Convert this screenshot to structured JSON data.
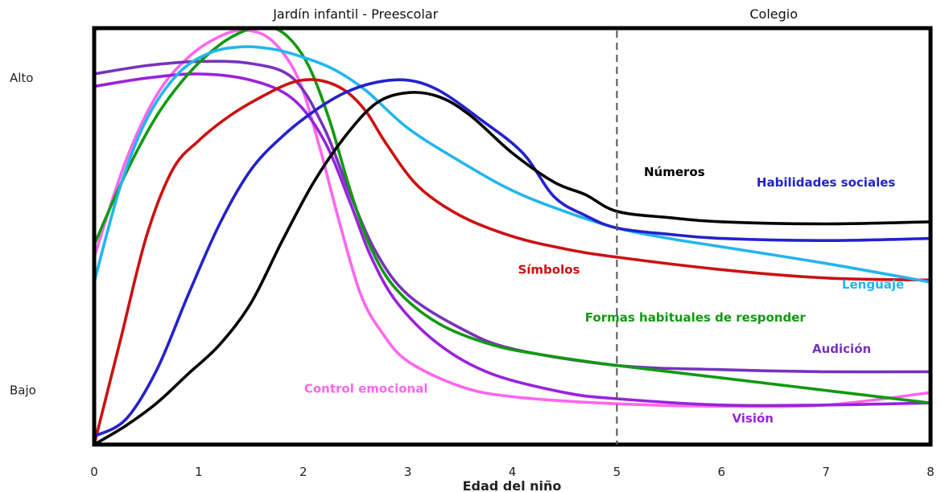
{
  "chart_data": {
    "type": "line",
    "xlabel": "Edad del niño",
    "ylabel": "",
    "xlim": [
      0,
      8
    ],
    "ylim": [
      0,
      10
    ],
    "x_ticks": [
      0,
      1,
      2,
      3,
      4,
      5,
      6,
      7,
      8
    ],
    "y_ticks": [
      {
        "label": "Bajo",
        "value": 1.3
      },
      {
        "label": "Alto",
        "value": 8.8
      }
    ],
    "regions": [
      {
        "label": "Jardín infantil - Preescolar",
        "from": 0,
        "to": 5
      },
      {
        "label": "Colegio",
        "from": 5,
        "to": 8
      }
    ],
    "divider_x": 5,
    "grid": false,
    "series": [
      {
        "name": "Control emocional",
        "color": "#ff66ee",
        "points": [
          [
            0,
            4.5
          ],
          [
            0.3,
            6.8
          ],
          [
            0.6,
            8.4
          ],
          [
            0.9,
            9.3
          ],
          [
            1.2,
            9.8
          ],
          [
            1.45,
            9.95
          ],
          [
            1.7,
            9.7
          ],
          [
            1.95,
            8.8
          ],
          [
            2.15,
            7.2
          ],
          [
            2.35,
            5.3
          ],
          [
            2.55,
            3.6
          ],
          [
            2.75,
            2.7
          ],
          [
            3,
            2.0
          ],
          [
            3.5,
            1.4
          ],
          [
            4,
            1.15
          ],
          [
            5,
            0.98
          ],
          [
            6,
            0.92
          ],
          [
            7,
            0.95
          ],
          [
            8,
            1.25
          ]
        ]
      },
      {
        "name": "Visión",
        "color": "#9922dd",
        "points": [
          [
            0,
            8.6
          ],
          [
            0.5,
            8.8
          ],
          [
            1,
            8.9
          ],
          [
            1.5,
            8.75
          ],
          [
            1.9,
            8.3
          ],
          [
            2.2,
            7.3
          ],
          [
            2.45,
            5.8
          ],
          [
            2.65,
            4.5
          ],
          [
            2.9,
            3.4
          ],
          [
            3.3,
            2.4
          ],
          [
            3.8,
            1.7
          ],
          [
            4.5,
            1.25
          ],
          [
            5,
            1.1
          ],
          [
            6,
            0.95
          ],
          [
            7,
            0.95
          ],
          [
            8,
            1.0
          ]
        ]
      },
      {
        "name": "Audición",
        "color": "#7733bb",
        "points": [
          [
            0,
            8.9
          ],
          [
            0.5,
            9.1
          ],
          [
            1,
            9.2
          ],
          [
            1.5,
            9.15
          ],
          [
            1.9,
            8.8
          ],
          [
            2.2,
            7.6
          ],
          [
            2.45,
            6.0
          ],
          [
            2.7,
            4.6
          ],
          [
            3,
            3.6
          ],
          [
            3.5,
            2.8
          ],
          [
            4,
            2.3
          ],
          [
            5,
            1.9
          ],
          [
            6,
            1.8
          ],
          [
            7,
            1.75
          ],
          [
            8,
            1.75
          ]
        ]
      },
      {
        "name": "Formas habituales de responder",
        "color": "#119911",
        "points": [
          [
            0,
            4.8
          ],
          [
            0.3,
            6.5
          ],
          [
            0.6,
            7.9
          ],
          [
            0.9,
            8.9
          ],
          [
            1.2,
            9.6
          ],
          [
            1.45,
            9.95
          ],
          [
            1.65,
            10.05
          ],
          [
            1.85,
            9.8
          ],
          [
            2.05,
            9.1
          ],
          [
            2.25,
            7.8
          ],
          [
            2.45,
            6.1
          ],
          [
            2.65,
            4.7
          ],
          [
            2.9,
            3.7
          ],
          [
            3.3,
            2.9
          ],
          [
            3.8,
            2.4
          ],
          [
            4.3,
            2.15
          ],
          [
            5,
            1.9
          ],
          [
            6,
            1.6
          ],
          [
            7,
            1.3
          ],
          [
            8,
            1.0
          ]
        ]
      },
      {
        "name": "Símbolos",
        "color": "#cc1111",
        "points": [
          [
            0,
            0
          ],
          [
            0.25,
            2.5
          ],
          [
            0.5,
            5.0
          ],
          [
            0.75,
            6.6
          ],
          [
            1,
            7.3
          ],
          [
            1.3,
            7.9
          ],
          [
            1.6,
            8.35
          ],
          [
            1.9,
            8.7
          ],
          [
            2.15,
            8.75
          ],
          [
            2.4,
            8.5
          ],
          [
            2.6,
            8.0
          ],
          [
            2.8,
            7.2
          ],
          [
            3.1,
            6.2
          ],
          [
            3.5,
            5.5
          ],
          [
            4,
            5.0
          ],
          [
            4.5,
            4.7
          ],
          [
            5,
            4.5
          ],
          [
            6,
            4.2
          ],
          [
            7,
            4.0
          ],
          [
            8,
            3.95
          ]
        ]
      },
      {
        "name": "Lenguaje",
        "color": "#22b5ee",
        "points": [
          [
            0,
            3.9
          ],
          [
            0.25,
            6.2
          ],
          [
            0.5,
            7.8
          ],
          [
            0.8,
            8.9
          ],
          [
            1.1,
            9.4
          ],
          [
            1.4,
            9.55
          ],
          [
            1.7,
            9.5
          ],
          [
            2,
            9.3
          ],
          [
            2.3,
            9.0
          ],
          [
            2.6,
            8.5
          ],
          [
            3,
            7.6
          ],
          [
            3.5,
            6.8
          ],
          [
            4,
            6.1
          ],
          [
            4.5,
            5.6
          ],
          [
            5,
            5.2
          ],
          [
            5.5,
            4.95
          ],
          [
            6,
            4.75
          ],
          [
            7,
            4.35
          ],
          [
            8,
            3.9
          ]
        ]
      },
      {
        "name": "Habilidades sociales",
        "color": "#2222cc",
        "points": [
          [
            0,
            0.2
          ],
          [
            0.3,
            0.6
          ],
          [
            0.6,
            1.8
          ],
          [
            0.9,
            3.6
          ],
          [
            1.2,
            5.3
          ],
          [
            1.5,
            6.6
          ],
          [
            1.8,
            7.4
          ],
          [
            2.1,
            8.0
          ],
          [
            2.4,
            8.45
          ],
          [
            2.7,
            8.7
          ],
          [
            3,
            8.75
          ],
          [
            3.3,
            8.5
          ],
          [
            3.7,
            7.8
          ],
          [
            4.1,
            7.0
          ],
          [
            4.4,
            5.95
          ],
          [
            4.7,
            5.5
          ],
          [
            5,
            5.2
          ],
          [
            5.5,
            5.05
          ],
          [
            6,
            4.95
          ],
          [
            7,
            4.9
          ],
          [
            8,
            4.95
          ]
        ]
      },
      {
        "name": "Números",
        "color": "#000000",
        "points": [
          [
            0,
            0
          ],
          [
            0.3,
            0.45
          ],
          [
            0.6,
            1.0
          ],
          [
            0.9,
            1.7
          ],
          [
            1.2,
            2.4
          ],
          [
            1.5,
            3.4
          ],
          [
            1.8,
            4.9
          ],
          [
            2.1,
            6.3
          ],
          [
            2.4,
            7.4
          ],
          [
            2.7,
            8.2
          ],
          [
            3,
            8.45
          ],
          [
            3.3,
            8.35
          ],
          [
            3.6,
            7.9
          ],
          [
            4,
            7.0
          ],
          [
            4.4,
            6.3
          ],
          [
            4.7,
            6.0
          ],
          [
            5,
            5.6
          ],
          [
            5.5,
            5.45
          ],
          [
            6,
            5.35
          ],
          [
            7,
            5.3
          ],
          [
            8,
            5.35
          ]
        ]
      }
    ],
    "annotations": [
      {
        "text": "Números",
        "color": "#000000",
        "x": 5.55,
        "y": 6.45
      },
      {
        "text": "Habilidades sociales",
        "color": "#2222cc",
        "x": 7.0,
        "y": 6.2
      },
      {
        "text": "Símbolos",
        "color": "#cc1111",
        "x": 4.35,
        "y": 4.1
      },
      {
        "text": "Lenguaje",
        "color": "#22b5ee",
        "x": 7.45,
        "y": 3.75
      },
      {
        "text": "Formas habituales de responder",
        "color": "#119911",
        "x": 5.75,
        "y": 2.95
      },
      {
        "text": "Audición",
        "color": "#7733bb",
        "x": 7.15,
        "y": 2.2
      },
      {
        "text": "Control emocional",
        "color": "#ff66ee",
        "x": 2.6,
        "y": 1.25
      },
      {
        "text": "Visión",
        "color": "#9922dd",
        "x": 6.3,
        "y": 0.53
      }
    ]
  }
}
